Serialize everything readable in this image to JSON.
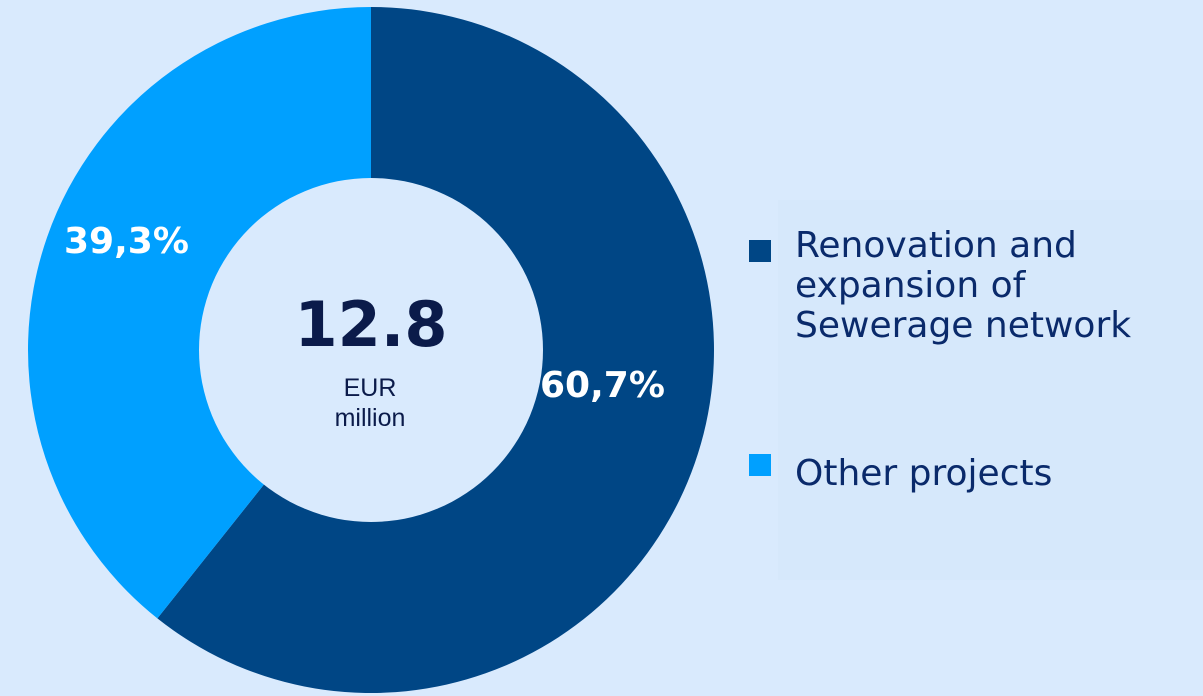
{
  "chart_data": {
    "type": "pie",
    "title": "",
    "center": {
      "value": "12.8",
      "unit": "EUR\nmillion"
    },
    "slices": [
      {
        "label": "Renovation and\nexpansion of\nSewerage network",
        "value": 60.7,
        "display": "60,7%",
        "color": "#004685"
      },
      {
        "label": "Other projects",
        "value": 39.3,
        "display": "39,3%",
        "color": "#00a0ff"
      }
    ],
    "legend": "right"
  },
  "colors": {
    "background": "#d9eafd",
    "hole": "#d9eafd",
    "text_dark": "#0b1b4a"
  }
}
